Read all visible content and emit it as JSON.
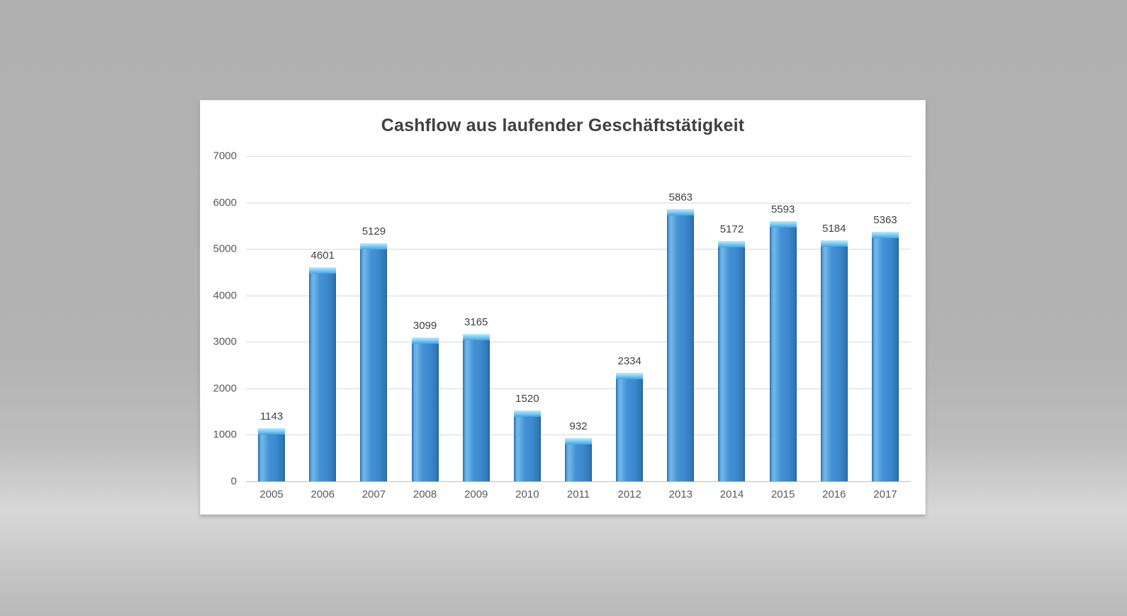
{
  "chart_data": {
    "type": "bar",
    "title": "Cashflow aus laufender Geschäftstätigkeit",
    "categories": [
      "2005",
      "2006",
      "2007",
      "2008",
      "2009",
      "2010",
      "2011",
      "2012",
      "2013",
      "2014",
      "2015",
      "2016",
      "2017"
    ],
    "values": [
      1143,
      4601,
      5129,
      3099,
      3165,
      1520,
      932,
      2334,
      5863,
      5172,
      5593,
      5184,
      5363
    ],
    "xlabel": "",
    "ylabel": "",
    "ylim": [
      0,
      7000
    ],
    "ytick_step": 1000,
    "yticks": [
      0,
      1000,
      2000,
      3000,
      4000,
      5000,
      6000,
      7000
    ],
    "grid": true,
    "legend": false,
    "value_labels_shown": true,
    "colors": {
      "bar_fill": "#3f8ed2",
      "bar_top_highlight": "#7fd0f7",
      "bar_edge_dark": "#255f95",
      "gridline": "#d9d9d9",
      "axis_line": "#c0c0c0",
      "title_text": "#404040",
      "tick_label_text": "#595959",
      "value_label_text": "#404040",
      "card_background": "#ffffff",
      "page_background": "#b3b3b3"
    }
  }
}
